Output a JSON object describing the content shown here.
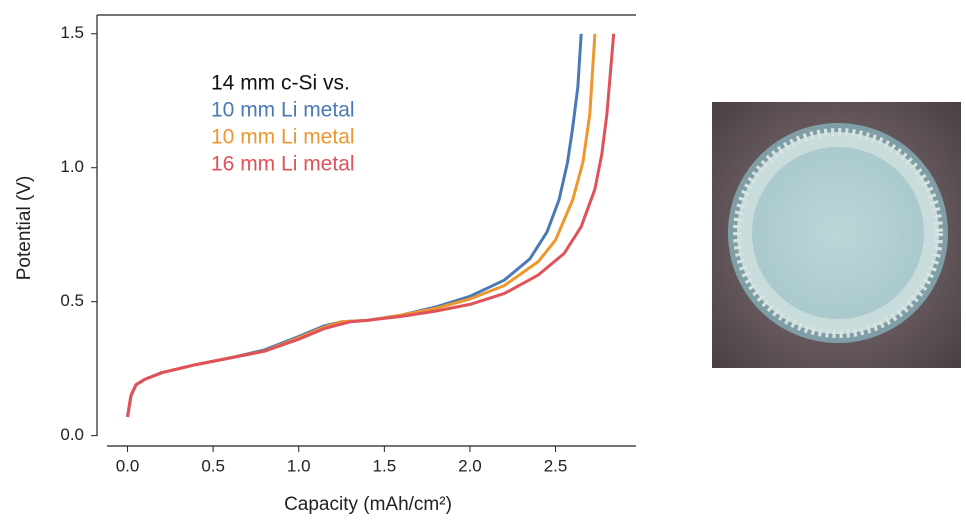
{
  "chart_data": {
    "type": "line",
    "xlabel": "Capacity (mAh/cm²)",
    "ylabel": "Potential (V)",
    "legend_title": "14 mm c-Si vs.",
    "legend": "upper left",
    "xlim": [
      -0.12,
      2.97
    ],
    "ylim": [
      -0.02,
      1.57
    ],
    "xticks": [
      {
        "value": 0,
        "label": "0.0"
      },
      0.5,
      {
        "value": 1,
        "label": "1.0"
      },
      1.5,
      {
        "value": 2,
        "label": "2.0"
      },
      2.5
    ],
    "yticks": [
      {
        "value": 0,
        "label": "0.0"
      },
      0.5,
      {
        "value": 1,
        "label": "1.0"
      },
      1.5
    ],
    "series": [
      {
        "name": "10 mm Li metal",
        "color": "#4a7ab5",
        "x": [
          0,
          0.02,
          0.05,
          0.1,
          0.2,
          0.4,
          0.6,
          0.8,
          1.0,
          1.15,
          1.25,
          1.4,
          1.6,
          1.8,
          2.0,
          2.2,
          2.35,
          2.45,
          2.52,
          2.57,
          2.6,
          2.63,
          2.65
        ],
        "values": [
          0.07,
          0.15,
          0.19,
          0.21,
          0.235,
          0.265,
          0.29,
          0.32,
          0.37,
          0.41,
          0.425,
          0.43,
          0.45,
          0.48,
          0.52,
          0.58,
          0.66,
          0.76,
          0.88,
          1.02,
          1.15,
          1.3,
          1.5
        ]
      },
      {
        "name": "10 mm Li metal",
        "color": "#f0962e",
        "x": [
          0,
          0.02,
          0.05,
          0.1,
          0.2,
          0.4,
          0.6,
          0.8,
          1.0,
          1.15,
          1.25,
          1.4,
          1.6,
          1.8,
          2.0,
          2.2,
          2.4,
          2.5,
          2.6,
          2.66,
          2.7,
          2.73
        ],
        "values": [
          0.07,
          0.15,
          0.19,
          0.21,
          0.235,
          0.265,
          0.29,
          0.315,
          0.365,
          0.405,
          0.425,
          0.43,
          0.45,
          0.475,
          0.51,
          0.56,
          0.65,
          0.73,
          0.88,
          1.02,
          1.2,
          1.5
        ]
      },
      {
        "name": "16 mm Li metal",
        "color": "#e0525a",
        "x": [
          0,
          0.02,
          0.05,
          0.1,
          0.2,
          0.4,
          0.6,
          0.8,
          1.0,
          1.15,
          1.3,
          1.4,
          1.6,
          1.8,
          2.0,
          2.2,
          2.4,
          2.55,
          2.65,
          2.73,
          2.77,
          2.8,
          2.84
        ],
        "values": [
          0.07,
          0.15,
          0.19,
          0.21,
          0.235,
          0.265,
          0.29,
          0.315,
          0.36,
          0.4,
          0.425,
          0.43,
          0.445,
          0.465,
          0.49,
          0.53,
          0.6,
          0.68,
          0.78,
          0.92,
          1.05,
          1.2,
          1.5
        ]
      }
    ]
  }
}
